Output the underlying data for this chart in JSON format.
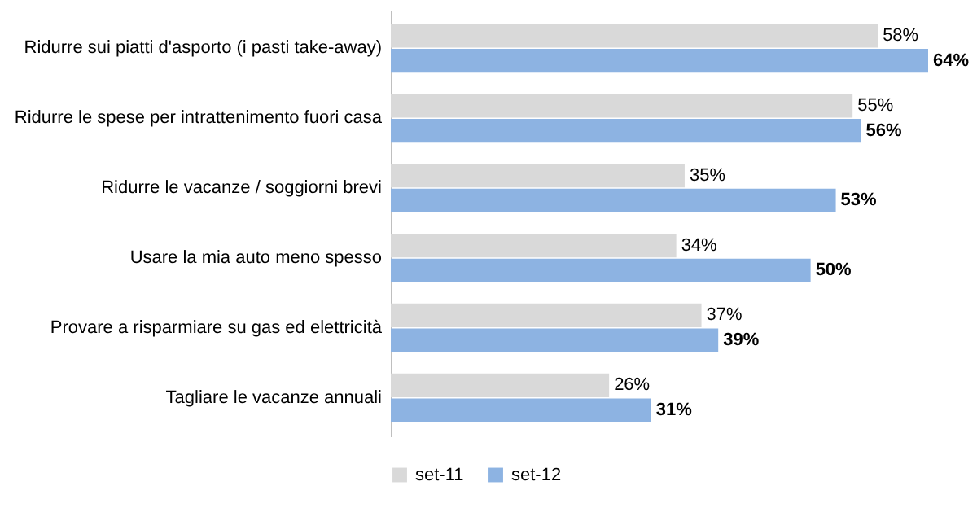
{
  "chart_data": {
    "type": "bar",
    "orientation": "horizontal",
    "categories": [
      "Ridurre sui piatti d'asporto (i pasti take-away)",
      "Ridurre le spese per intrattenimento fuori casa",
      "Ridurre le vacanze / soggiorni brevi",
      "Usare la mia auto meno spesso",
      "Provare a risparmiare su gas ed elettricità",
      "Tagliare le vacanze annuali"
    ],
    "series": [
      {
        "name": "set-11",
        "color": "#d9d9d9",
        "values": [
          58,
          55,
          35,
          34,
          37,
          26
        ],
        "value_labels": [
          "58%",
          "55%",
          "35%",
          "34%",
          "37%",
          "26%"
        ]
      },
      {
        "name": "set-12",
        "color": "#8db3e2",
        "values": [
          64,
          56,
          53,
          50,
          39,
          31
        ],
        "value_labels": [
          "64%",
          "56%",
          "53%",
          "50%",
          "39%",
          "31%"
        ]
      }
    ],
    "legend": "bottom"
  }
}
